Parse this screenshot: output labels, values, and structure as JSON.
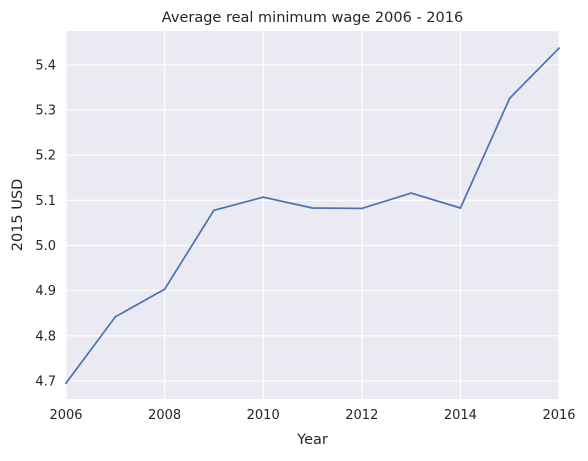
{
  "chart_data": {
    "type": "line",
    "title": "Average real minimum wage 2006 - 2016",
    "xlabel": "Year",
    "ylabel": "2015 USD",
    "x": [
      2006,
      2007,
      2008,
      2009,
      2010,
      2011,
      2012,
      2013,
      2014,
      2015,
      2016
    ],
    "series": [
      {
        "values": [
          4.695,
          4.842,
          4.903,
          5.078,
          5.107,
          5.083,
          5.082,
          5.116,
          5.083,
          5.326,
          5.437
        ],
        "color": "#4c72b0"
      }
    ],
    "xlim": [
      2006,
      2016
    ],
    "ylim": [
      4.66,
      5.475
    ],
    "xticks": [
      "2006",
      "2008",
      "2010",
      "2012",
      "2014",
      "2016"
    ],
    "yticks": [
      "4.7",
      "4.8",
      "4.9",
      "5.0",
      "5.1",
      "5.2",
      "5.3",
      "5.4"
    ],
    "grid": true,
    "background_color": "#eaeaf2",
    "grid_color": "#ffffff"
  }
}
